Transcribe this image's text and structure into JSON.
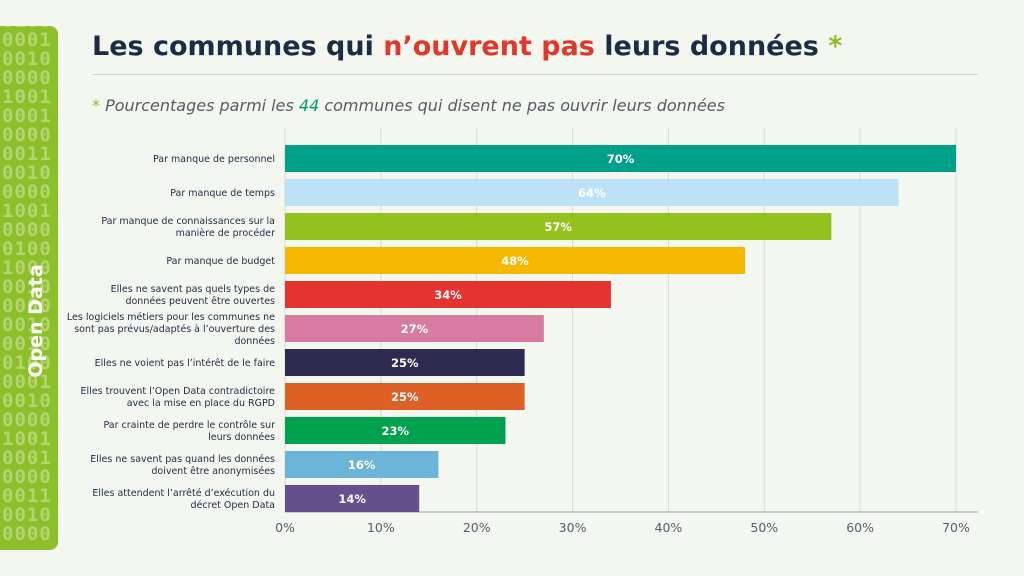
{
  "sidebar": {
    "label": "Open Data",
    "binary_pattern": "001000100100000100100000100100010000001100100000100100000100100000100000001000100100000100100000100100010000001100100000"
  },
  "header": {
    "title_part1": "Les communes qui ",
    "title_highlight": "n’ouvrent pas",
    "title_part2": " leurs données ",
    "title_star": "*"
  },
  "subtitle": {
    "star": "*",
    "part1": " Pourcentages parmi les ",
    "count": "44",
    "part2": " communes qui disent ne pas ouvrir leurs données"
  },
  "colors": {
    "title": "#1e2b44",
    "highlight": "#e2372b",
    "accent": "#8dbf2a",
    "gridline": "#d7dbd5",
    "axis": "#9aa3ad"
  },
  "chart_data": {
    "type": "bar",
    "orientation": "horizontal",
    "title": "Les communes qui n’ouvrent pas leurs données",
    "xlabel": "",
    "ylabel": "",
    "xlim": [
      0,
      70
    ],
    "grid": true,
    "ticks": [
      0,
      10,
      20,
      30,
      40,
      50,
      60,
      70
    ],
    "tick_labels": [
      "0%",
      "10%",
      "20%",
      "30%",
      "40%",
      "50%",
      "60%",
      "70%"
    ],
    "bars": [
      {
        "lines": [
          "Par manque de personnel"
        ],
        "value": 70,
        "label": "70%",
        "color": "#00a08a"
      },
      {
        "lines": [
          "Par manque de temps"
        ],
        "value": 64,
        "label": "64%",
        "color": "#bde2f7"
      },
      {
        "lines": [
          "Par manque de connaissances sur la",
          "manière de procéder"
        ],
        "value": 57,
        "label": "57%",
        "color": "#95c11f"
      },
      {
        "lines": [
          "Par manque de budget"
        ],
        "value": 48,
        "label": "48%",
        "color": "#f5b800"
      },
      {
        "lines": [
          "Elles ne savent pas quels types de",
          "données peuvent être ouvertes"
        ],
        "value": 34,
        "label": "34%",
        "color": "#e53430"
      },
      {
        "lines": [
          "Les logiciels métiers pour les communes ne",
          "sont pas prévus/adaptés à l’ouverture des",
          "données"
        ],
        "value": 27,
        "label": "27%",
        "color": "#d77ba0"
      },
      {
        "lines": [
          "Elles ne voient pas l’intérêt de le faire"
        ],
        "value": 25,
        "label": "25%",
        "color": "#2f2a4f"
      },
      {
        "lines": [
          "Elles trouvent l’Open Data contradictoire",
          "avec la mise en place du RGPD"
        ],
        "value": 25,
        "label": "25%",
        "color": "#dd6126"
      },
      {
        "lines": [
          "Par crainte de perdre le contrôle sur",
          "leurs données"
        ],
        "value": 23,
        "label": "23%",
        "color": "#00a24f"
      },
      {
        "lines": [
          "Elles ne savent pas quand les données",
          "doivent être anonymisées"
        ],
        "value": 16,
        "label": "16%",
        "color": "#6cb4d8"
      },
      {
        "lines": [
          "Elles attendent l’arrêté d’exécution du",
          "décret Open Data"
        ],
        "value": 14,
        "label": "14%",
        "color": "#654f8c"
      }
    ]
  }
}
